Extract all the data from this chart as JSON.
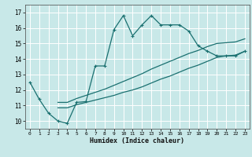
{
  "xlabel": "Humidex (Indice chaleur)",
  "bg_color": "#c8e8e8",
  "grid_color": "#ffffff",
  "line_color": "#1a7070",
  "xlim": [
    -0.5,
    23.5
  ],
  "ylim": [
    9.5,
    17.5
  ],
  "xticks": [
    0,
    1,
    2,
    3,
    4,
    5,
    6,
    7,
    8,
    9,
    10,
    11,
    12,
    13,
    14,
    15,
    16,
    17,
    18,
    19,
    20,
    21,
    22,
    23
  ],
  "yticks": [
    10,
    11,
    12,
    13,
    14,
    15,
    16,
    17
  ],
  "series1_x": [
    0,
    1,
    2,
    3,
    4,
    5,
    6,
    7,
    8,
    9,
    10,
    11,
    12,
    13,
    14,
    15,
    16,
    17,
    18,
    19,
    20,
    21,
    22,
    23
  ],
  "series1_y": [
    12.5,
    11.4,
    10.5,
    10.0,
    9.85,
    11.2,
    11.25,
    13.55,
    13.55,
    15.9,
    16.8,
    15.5,
    16.2,
    16.8,
    16.2,
    16.2,
    16.2,
    15.8,
    14.85,
    14.5,
    14.2,
    14.2,
    14.2,
    14.5
  ],
  "series2_x": [
    3,
    4,
    5,
    6,
    7,
    8,
    9,
    10,
    11,
    12,
    13,
    14,
    15,
    16,
    17,
    18,
    19,
    20,
    21,
    22,
    23
  ],
  "series2_y": [
    10.85,
    10.85,
    11.05,
    11.2,
    11.35,
    11.5,
    11.65,
    11.85,
    12.0,
    12.2,
    12.45,
    12.7,
    12.9,
    13.15,
    13.4,
    13.6,
    13.85,
    14.1,
    14.2,
    14.25,
    14.5
  ],
  "series3_x": [
    3,
    4,
    5,
    6,
    7,
    8,
    9,
    10,
    11,
    12,
    13,
    14,
    15,
    16,
    17,
    18,
    19,
    20,
    21,
    22,
    23
  ],
  "series3_y": [
    11.2,
    11.2,
    11.45,
    11.65,
    11.85,
    12.05,
    12.3,
    12.55,
    12.8,
    13.05,
    13.35,
    13.6,
    13.85,
    14.1,
    14.35,
    14.55,
    14.8,
    15.0,
    15.05,
    15.1,
    15.3
  ]
}
